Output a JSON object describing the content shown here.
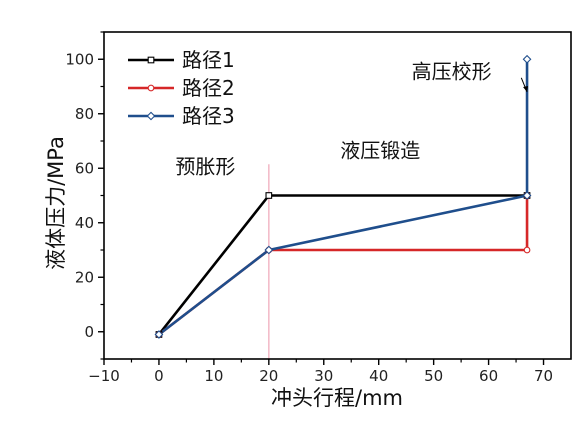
{
  "chart_data": {
    "type": "line",
    "xlabel": "冲头行程/mm",
    "ylabel": "液体压力/MPa",
    "xlim": [
      -10,
      75
    ],
    "ylim": [
      -10,
      110
    ],
    "x_ticks": [
      -10,
      0,
      10,
      20,
      30,
      40,
      50,
      60,
      70
    ],
    "x_tick_labels": [
      "−10",
      "0",
      "10",
      "20",
      "30",
      "40",
      "50",
      "60",
      "70"
    ],
    "y_ticks": [
      0,
      20,
      40,
      60,
      80,
      100
    ],
    "y_tick_labels": [
      "0",
      "20",
      "40",
      "60",
      "80",
      "100"
    ],
    "grid": false,
    "legend_position": "top-left",
    "series": [
      {
        "name": "路径1",
        "color": "#000000",
        "marker": "square",
        "points": [
          [
            0,
            -1
          ],
          [
            20,
            50
          ],
          [
            67,
            50
          ]
        ]
      },
      {
        "name": "路径2",
        "color": "#d62728",
        "marker": "circle",
        "points": [
          [
            0,
            -1
          ],
          [
            20,
            30
          ],
          [
            67,
            30
          ],
          [
            67,
            50
          ]
        ]
      },
      {
        "name": "路径3",
        "color": "#1f4e8c",
        "marker": "diamond",
        "points": [
          [
            0,
            -1
          ],
          [
            20,
            30
          ],
          [
            67,
            50
          ],
          [
            67,
            100
          ]
        ]
      }
    ],
    "reference_line": {
      "x": 20,
      "color": "#f2b8c6"
    },
    "annotations": [
      {
        "id": "preexpand",
        "text": "预胀形",
        "at": [
          3,
          58
        ]
      },
      {
        "id": "hydroforge",
        "text": "液压锻造",
        "at": [
          33,
          64
        ]
      },
      {
        "id": "calibration",
        "text": "高压校形",
        "at": [
          46,
          93
        ]
      }
    ],
    "callout": {
      "from": [
        66.5,
        91
      ],
      "to": [
        67,
        88
      ]
    }
  }
}
